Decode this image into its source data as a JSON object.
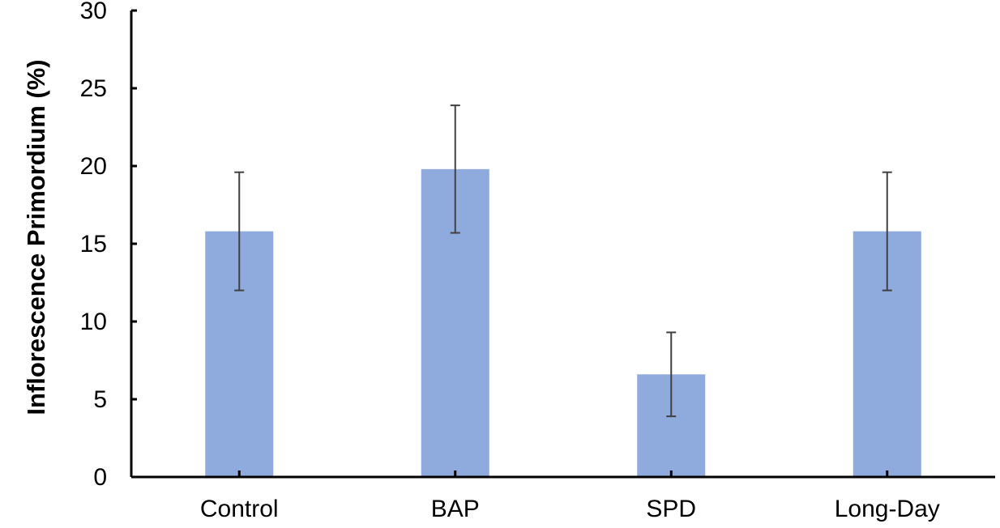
{
  "chart_data": {
    "type": "bar",
    "categories": [
      "Control",
      "BAP",
      "SPD",
      "Long-Day"
    ],
    "series": [
      {
        "values": [
          15.8,
          19.8,
          6.6,
          15.8
        ],
        "error": [
          3.8,
          4.1,
          2.7,
          3.8
        ]
      }
    ],
    "title": "",
    "xlabel": "",
    "ylabel": "Inflorescence Primordium (%)",
    "ylim": [
      0,
      30
    ],
    "yticks": [
      0,
      5,
      10,
      15,
      20,
      25,
      30
    ],
    "ytick_labels": [
      "0",
      "5",
      "10",
      "15",
      "20",
      "25",
      "30"
    ],
    "grid": false,
    "legend": "none",
    "colors": {
      "bar": "#8faadc",
      "error_bar": "#404040",
      "axis": "#000000"
    }
  }
}
